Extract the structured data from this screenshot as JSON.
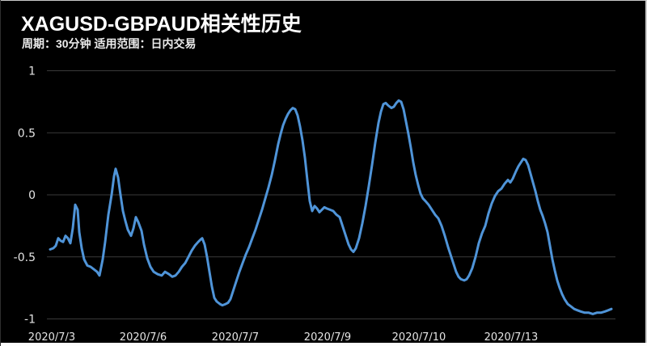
{
  "header": {
    "title": "XAGUSD-GBPAUD相关性历史",
    "subtitle": "周期：30分钟  适用范围：日内交易"
  },
  "colors": {
    "background": "#000000",
    "line": "#4f94d8",
    "grid": "#3a3a3a",
    "text": "#e4e4e4",
    "title_text": "#ffffff"
  },
  "chart_data": {
    "type": "line",
    "title": "XAGUSD-GBPAUD相关性历史",
    "subtitle": "周期：30分钟 适用范围：日内交易",
    "xlabel": "",
    "ylabel": "",
    "ylim": [
      -1,
      1
    ],
    "grid": true,
    "legend_position": "none",
    "background": "black",
    "y_ticks": [
      1,
      0.5,
      0,
      -0.5,
      -1
    ],
    "y_tick_labels": [
      "1",
      "0.5",
      "0",
      "-0.5",
      "-1"
    ],
    "x_tick_labels": [
      "2020/7/3",
      "2020/7/6",
      "2020/7/7",
      "2020/7/9",
      "2020/7/10",
      "2020/7/13"
    ],
    "series": [
      {
        "name": "XAGUSD-GBPAUD correlation",
        "color": "#4f94d8",
        "points": [
          [
            62,
            -0.44
          ],
          [
            66,
            -0.43
          ],
          [
            69,
            -0.41
          ],
          [
            72,
            -0.35
          ],
          [
            75,
            -0.37
          ],
          [
            78,
            -0.38
          ],
          [
            81,
            -0.33
          ],
          [
            84,
            -0.35
          ],
          [
            87,
            -0.39
          ],
          [
            90,
            -0.27
          ],
          [
            93,
            -0.08
          ],
          [
            96,
            -0.12
          ],
          [
            98,
            -0.3
          ],
          [
            101,
            -0.43
          ],
          [
            104,
            -0.52
          ],
          [
            108,
            -0.57
          ],
          [
            112,
            -0.58
          ],
          [
            116,
            -0.6
          ],
          [
            120,
            -0.62
          ],
          [
            123,
            -0.65
          ],
          [
            127,
            -0.52
          ],
          [
            130,
            -0.38
          ],
          [
            134,
            -0.16
          ],
          [
            138,
            0.0
          ],
          [
            141,
            0.15
          ],
          [
            143,
            0.21
          ],
          [
            146,
            0.14
          ],
          [
            149,
            0.0
          ],
          [
            152,
            -0.13
          ],
          [
            155,
            -0.21
          ],
          [
            158,
            -0.28
          ],
          [
            162,
            -0.33
          ],
          [
            165,
            -0.27
          ],
          [
            168,
            -0.18
          ],
          [
            171,
            -0.22
          ],
          [
            175,
            -0.29
          ],
          [
            178,
            -0.4
          ],
          [
            182,
            -0.51
          ],
          [
            186,
            -0.58
          ],
          [
            190,
            -0.62
          ],
          [
            195,
            -0.64
          ],
          [
            200,
            -0.65
          ],
          [
            204,
            -0.62
          ],
          [
            209,
            -0.64
          ],
          [
            213,
            -0.66
          ],
          [
            217,
            -0.65
          ],
          [
            221,
            -0.62
          ],
          [
            225,
            -0.58
          ],
          [
            229,
            -0.55
          ],
          [
            233,
            -0.5
          ],
          [
            237,
            -0.45
          ],
          [
            241,
            -0.41
          ],
          [
            245,
            -0.38
          ],
          [
            248,
            -0.36
          ],
          [
            250,
            -0.35
          ],
          [
            253,
            -0.4
          ],
          [
            256,
            -0.5
          ],
          [
            259,
            -0.62
          ],
          [
            262,
            -0.74
          ],
          [
            265,
            -0.83
          ],
          [
            268,
            -0.86
          ],
          [
            272,
            -0.88
          ],
          [
            275,
            -0.89
          ],
          [
            279,
            -0.88
          ],
          [
            282,
            -0.87
          ],
          [
            285,
            -0.84
          ],
          [
            288,
            -0.78
          ],
          [
            292,
            -0.7
          ],
          [
            296,
            -0.62
          ],
          [
            300,
            -0.55
          ],
          [
            304,
            -0.48
          ],
          [
            308,
            -0.42
          ],
          [
            312,
            -0.35
          ],
          [
            316,
            -0.28
          ],
          [
            320,
            -0.2
          ],
          [
            324,
            -0.12
          ],
          [
            328,
            -0.03
          ],
          [
            332,
            0.06
          ],
          [
            336,
            0.16
          ],
          [
            340,
            0.28
          ],
          [
            344,
            0.41
          ],
          [
            347,
            0.49
          ],
          [
            350,
            0.56
          ],
          [
            353,
            0.61
          ],
          [
            356,
            0.65
          ],
          [
            359,
            0.68
          ],
          [
            362,
            0.7
          ],
          [
            365,
            0.69
          ],
          [
            368,
            0.64
          ],
          [
            371,
            0.55
          ],
          [
            374,
            0.44
          ],
          [
            377,
            0.3
          ],
          [
            380,
            0.12
          ],
          [
            383,
            -0.05
          ],
          [
            386,
            -0.13
          ],
          [
            389,
            -0.09
          ],
          [
            392,
            -0.11
          ],
          [
            395,
            -0.14
          ],
          [
            398,
            -0.12
          ],
          [
            401,
            -0.1
          ],
          [
            404,
            -0.11
          ],
          [
            408,
            -0.12
          ],
          [
            412,
            -0.13
          ],
          [
            416,
            -0.16
          ],
          [
            420,
            -0.18
          ],
          [
            424,
            -0.26
          ],
          [
            428,
            -0.34
          ],
          [
            431,
            -0.4
          ],
          [
            434,
            -0.44
          ],
          [
            437,
            -0.46
          ],
          [
            440,
            -0.43
          ],
          [
            444,
            -0.35
          ],
          [
            448,
            -0.23
          ],
          [
            452,
            -0.09
          ],
          [
            456,
            0.07
          ],
          [
            460,
            0.24
          ],
          [
            464,
            0.42
          ],
          [
            468,
            0.58
          ],
          [
            471,
            0.67
          ],
          [
            474,
            0.73
          ],
          [
            477,
            0.74
          ],
          [
            480,
            0.72
          ],
          [
            484,
            0.7
          ],
          [
            487,
            0.71
          ],
          [
            490,
            0.74
          ],
          [
            493,
            0.76
          ],
          [
            496,
            0.75
          ],
          [
            499,
            0.69
          ],
          [
            502,
            0.59
          ],
          [
            505,
            0.49
          ],
          [
            508,
            0.38
          ],
          [
            511,
            0.26
          ],
          [
            514,
            0.16
          ],
          [
            517,
            0.08
          ],
          [
            520,
            0.01
          ],
          [
            523,
            -0.03
          ],
          [
            526,
            -0.05
          ],
          [
            530,
            -0.08
          ],
          [
            534,
            -0.12
          ],
          [
            538,
            -0.16
          ],
          [
            542,
            -0.19
          ],
          [
            546,
            -0.25
          ],
          [
            550,
            -0.33
          ],
          [
            554,
            -0.42
          ],
          [
            558,
            -0.5
          ],
          [
            561,
            -0.56
          ],
          [
            564,
            -0.62
          ],
          [
            567,
            -0.66
          ],
          [
            570,
            -0.68
          ],
          [
            574,
            -0.69
          ],
          [
            577,
            -0.68
          ],
          [
            580,
            -0.65
          ],
          [
            584,
            -0.59
          ],
          [
            588,
            -0.5
          ],
          [
            592,
            -0.39
          ],
          [
            596,
            -0.31
          ],
          [
            600,
            -0.25
          ],
          [
            604,
            -0.15
          ],
          [
            608,
            -0.07
          ],
          [
            612,
            -0.01
          ],
          [
            616,
            0.03
          ],
          [
            620,
            0.05
          ],
          [
            624,
            0.09
          ],
          [
            628,
            0.12
          ],
          [
            631,
            0.1
          ],
          [
            634,
            0.13
          ],
          [
            638,
            0.19
          ],
          [
            641,
            0.23
          ],
          [
            644,
            0.26
          ],
          [
            647,
            0.29
          ],
          [
            650,
            0.28
          ],
          [
            653,
            0.24
          ],
          [
            656,
            0.17
          ],
          [
            659,
            0.1
          ],
          [
            662,
            0.03
          ],
          [
            665,
            -0.05
          ],
          [
            668,
            -0.12
          ],
          [
            671,
            -0.17
          ],
          [
            674,
            -0.23
          ],
          [
            677,
            -0.3
          ],
          [
            680,
            -0.41
          ],
          [
            683,
            -0.52
          ],
          [
            686,
            -0.61
          ],
          [
            689,
            -0.69
          ],
          [
            692,
            -0.75
          ],
          [
            695,
            -0.8
          ],
          [
            698,
            -0.84
          ],
          [
            702,
            -0.88
          ],
          [
            706,
            -0.9
          ],
          [
            710,
            -0.92
          ],
          [
            714,
            -0.93
          ],
          [
            718,
            -0.94
          ],
          [
            723,
            -0.95
          ],
          [
            728,
            -0.95
          ],
          [
            733,
            -0.96
          ],
          [
            738,
            -0.95
          ],
          [
            743,
            -0.95
          ],
          [
            748,
            -0.94
          ],
          [
            752,
            -0.93
          ],
          [
            756,
            -0.92
          ]
        ]
      }
    ]
  }
}
